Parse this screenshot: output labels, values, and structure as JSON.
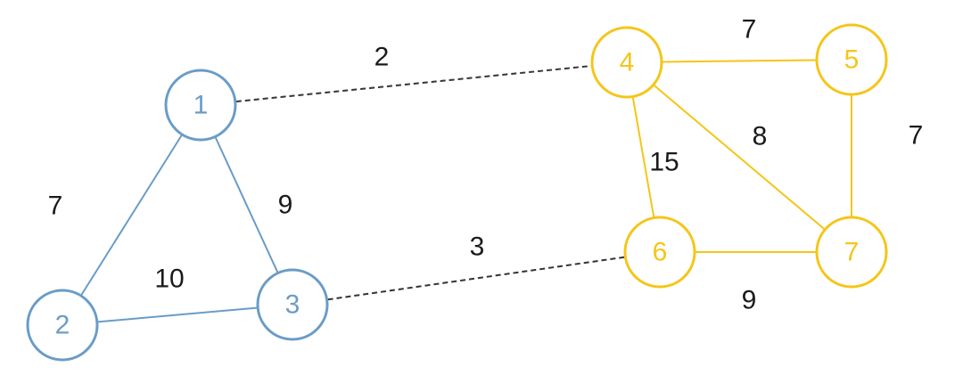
{
  "colors": {
    "group_a": "#6a9cc7",
    "group_b": "#f5c518",
    "bridge": "#333333",
    "weight_text": "#1a1a1a"
  },
  "nodes": [
    {
      "id": "1",
      "label": "1",
      "group": "a"
    },
    {
      "id": "2",
      "label": "2",
      "group": "a"
    },
    {
      "id": "3",
      "label": "3",
      "group": "a"
    },
    {
      "id": "4",
      "label": "4",
      "group": "b"
    },
    {
      "id": "5",
      "label": "5",
      "group": "b"
    },
    {
      "id": "6",
      "label": "6",
      "group": "b"
    },
    {
      "id": "7",
      "label": "7",
      "group": "b"
    }
  ],
  "edges": [
    {
      "from": "1",
      "to": "2",
      "weight": "7",
      "style": "solid",
      "group": "a"
    },
    {
      "from": "1",
      "to": "3",
      "weight": "9",
      "style": "solid",
      "group": "a"
    },
    {
      "from": "2",
      "to": "3",
      "weight": "10",
      "style": "solid",
      "group": "a"
    },
    {
      "from": "1",
      "to": "4",
      "weight": "2",
      "style": "dashed",
      "group": "bridge"
    },
    {
      "from": "3",
      "to": "6",
      "weight": "3",
      "style": "dashed",
      "group": "bridge"
    },
    {
      "from": "4",
      "to": "5",
      "weight": "7",
      "style": "solid",
      "group": "b"
    },
    {
      "from": "4",
      "to": "6",
      "weight": "15",
      "style": "solid",
      "group": "b"
    },
    {
      "from": "4",
      "to": "7",
      "weight": "8",
      "style": "solid",
      "group": "b"
    },
    {
      "from": "5",
      "to": "7",
      "weight": "7",
      "style": "solid",
      "group": "b"
    },
    {
      "from": "6",
      "to": "7",
      "weight": "9",
      "style": "solid",
      "group": "b"
    }
  ]
}
